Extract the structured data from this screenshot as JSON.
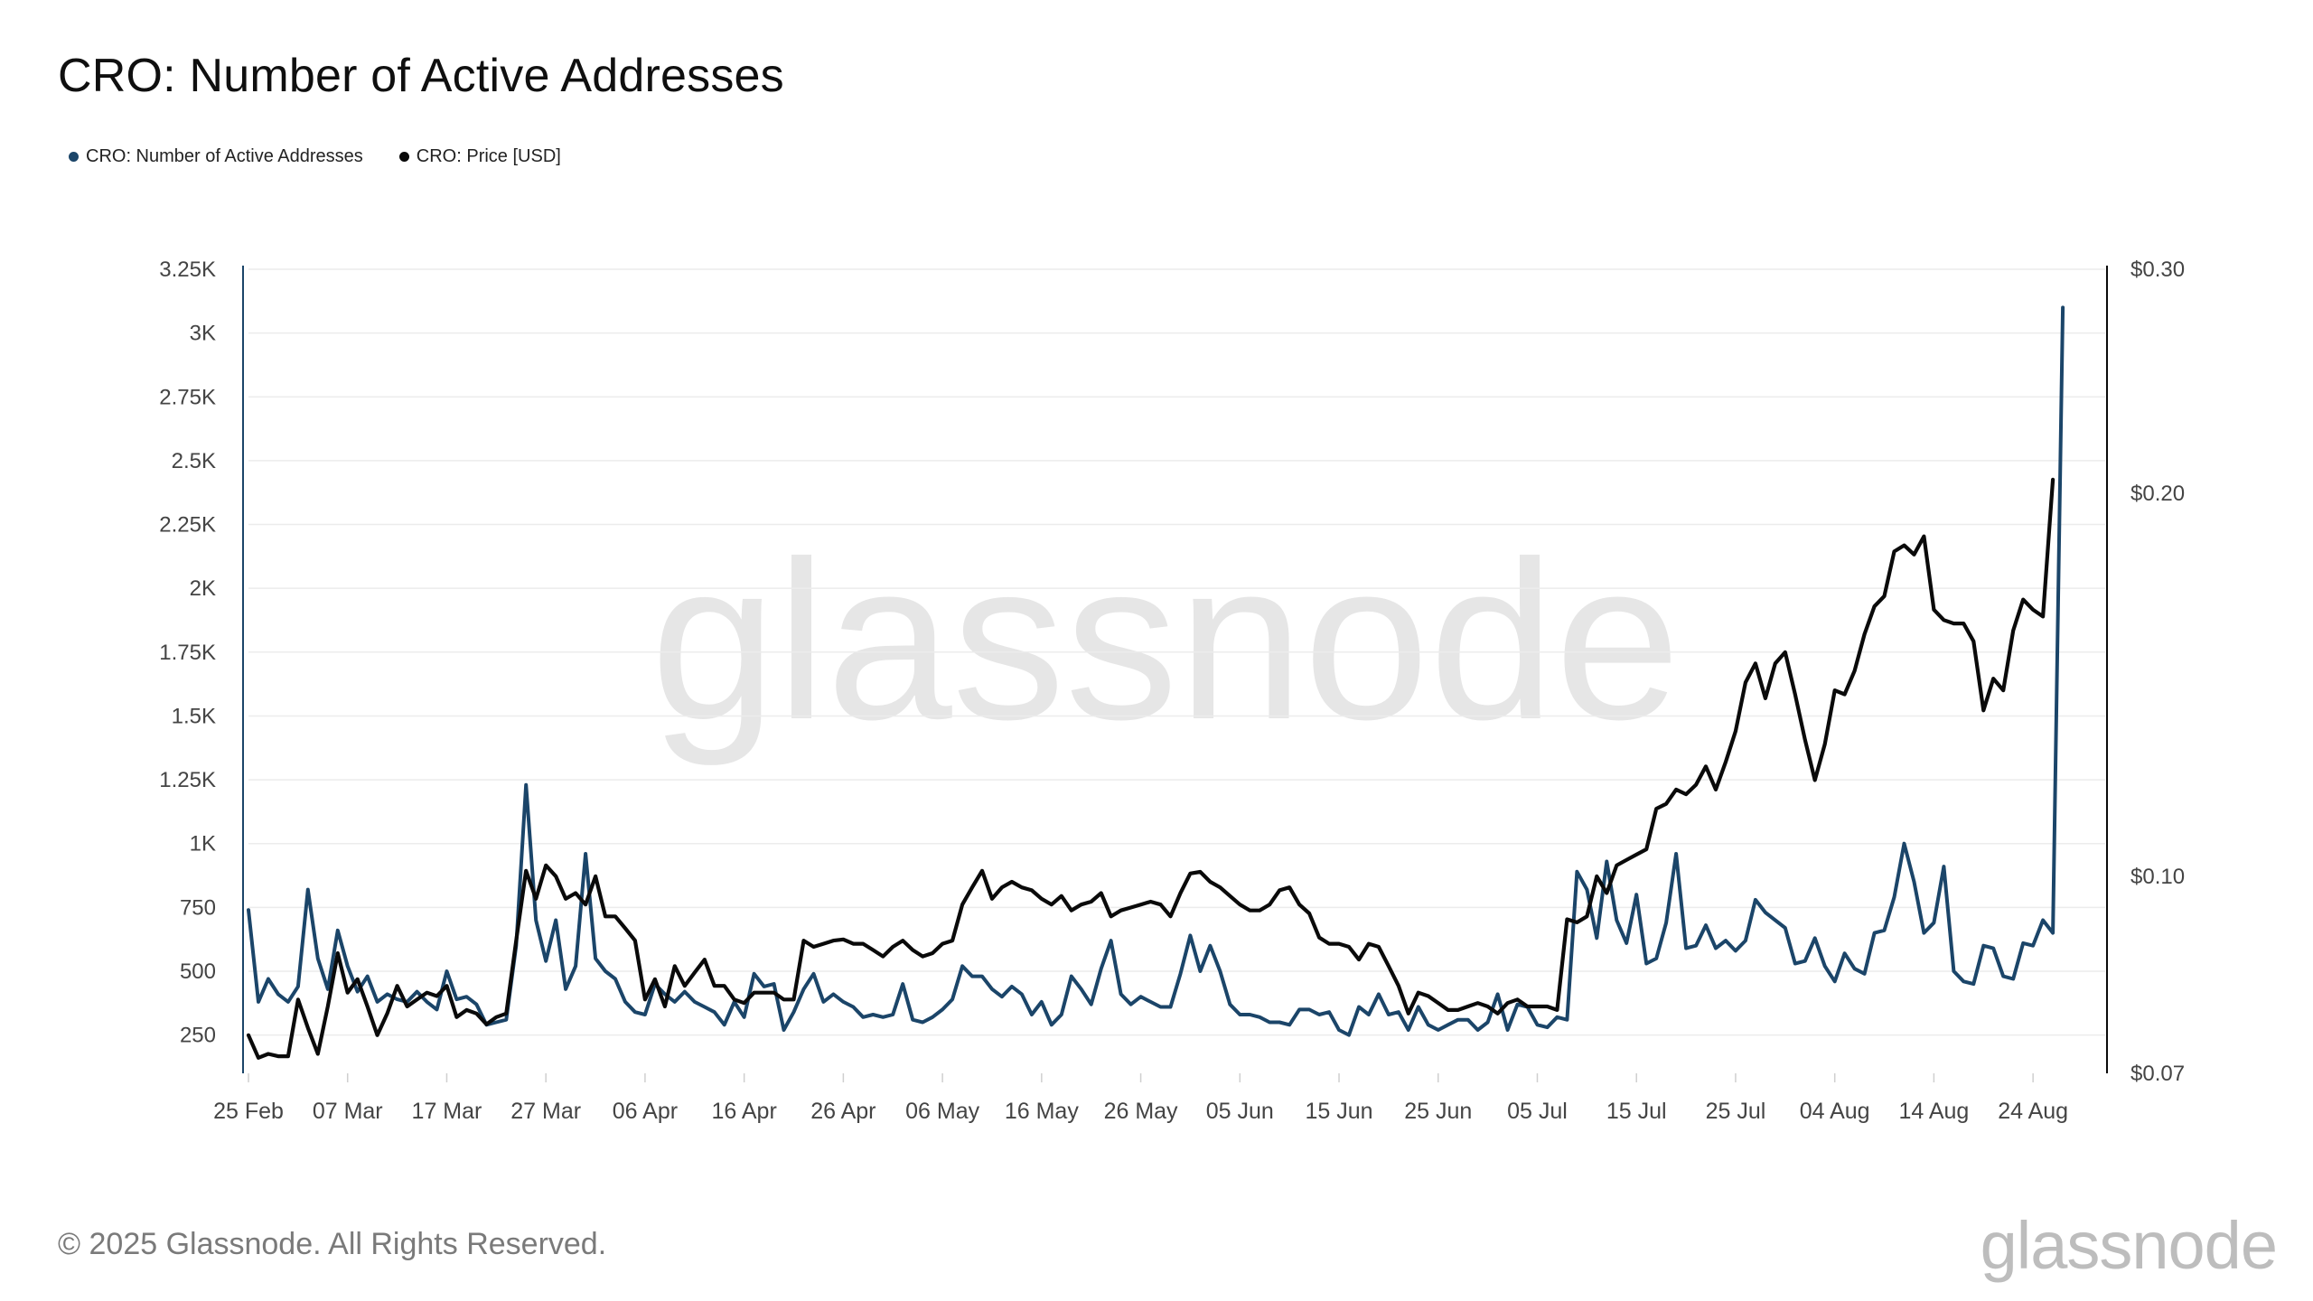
{
  "page": {
    "title": "CRO: Number of Active Addresses",
    "copyright": "© 2025 Glassnode. All Rights Reserved.",
    "brand": "glassnode",
    "watermark": "glassnode"
  },
  "colors": {
    "active_addresses": "#1b4569",
    "price": "#0a0a0a",
    "grid": "#ececec",
    "axis_text": "#444444",
    "watermark": "#e6e6e6"
  },
  "chart_data": {
    "type": "line",
    "title": "CRO: Number of Active Addresses",
    "legend": [
      "CRO: Number of Active Addresses",
      "CRO: Price [USD]"
    ],
    "x_start_date": "2025-02-25",
    "x_day_range": [
      0,
      185
    ],
    "x_ticks": [
      {
        "day": 0,
        "label": "25 Feb"
      },
      {
        "day": 10,
        "label": "07 Mar"
      },
      {
        "day": 20,
        "label": "17 Mar"
      },
      {
        "day": 30,
        "label": "27 Mar"
      },
      {
        "day": 40,
        "label": "06 Apr"
      },
      {
        "day": 50,
        "label": "16 Apr"
      },
      {
        "day": 60,
        "label": "26 Apr"
      },
      {
        "day": 70,
        "label": "06 May"
      },
      {
        "day": 80,
        "label": "16 May"
      },
      {
        "day": 90,
        "label": "26 May"
      },
      {
        "day": 100,
        "label": "05 Jun"
      },
      {
        "day": 110,
        "label": "15 Jun"
      },
      {
        "day": 120,
        "label": "25 Jun"
      },
      {
        "day": 130,
        "label": "05 Jul"
      },
      {
        "day": 140,
        "label": "15 Jul"
      },
      {
        "day": 150,
        "label": "25 Jul"
      },
      {
        "day": 160,
        "label": "04 Aug"
      },
      {
        "day": 170,
        "label": "14 Aug"
      },
      {
        "day": 180,
        "label": "24 Aug"
      }
    ],
    "y_left": {
      "range": [
        100,
        3250
      ],
      "ticks": [
        {
          "value": 250,
          "label": "250"
        },
        {
          "value": 500,
          "label": "500"
        },
        {
          "value": 750,
          "label": "750"
        },
        {
          "value": 1000,
          "label": "1K"
        },
        {
          "value": 1250,
          "label": "1.25K"
        },
        {
          "value": 1500,
          "label": "1.5K"
        },
        {
          "value": 1750,
          "label": "1.75K"
        },
        {
          "value": 2000,
          "label": "2K"
        },
        {
          "value": 2250,
          "label": "2.25K"
        },
        {
          "value": 2500,
          "label": "2.5K"
        },
        {
          "value": 2750,
          "label": "2.75K"
        },
        {
          "value": 3000,
          "label": "3K"
        },
        {
          "value": 3250,
          "label": "3.25K"
        }
      ]
    },
    "y_right": {
      "scale": "log",
      "range": [
        0.07,
        0.3
      ],
      "ticks": [
        {
          "value": 0.07,
          "label": "$0.07"
        },
        {
          "value": 0.1,
          "label": "$0.10"
        },
        {
          "value": 0.2,
          "label": "$0.20"
        },
        {
          "value": 0.3,
          "label": "$0.30"
        }
      ]
    },
    "series": [
      {
        "name": "CRO: Number of Active Addresses",
        "axis": "left",
        "color": "#1b4569",
        "start_day": 0,
        "values": [
          740,
          380,
          470,
          410,
          380,
          440,
          820,
          550,
          430,
          660,
          520,
          420,
          480,
          380,
          410,
          390,
          380,
          420,
          380,
          350,
          500,
          390,
          400,
          370,
          290,
          300,
          310,
          600,
          1230,
          700,
          540,
          700,
          430,
          520,
          960,
          550,
          500,
          470,
          380,
          340,
          330,
          450,
          410,
          380,
          420,
          380,
          360,
          340,
          290,
          380,
          320,
          490,
          440,
          450,
          270,
          340,
          430,
          490,
          380,
          410,
          380,
          360,
          320,
          330,
          320,
          330,
          450,
          310,
          300,
          320,
          350,
          390,
          520,
          480,
          480,
          430,
          400,
          440,
          410,
          330,
          380,
          290,
          330,
          480,
          430,
          370,
          510,
          620,
          410,
          370,
          400,
          380,
          360,
          360,
          490,
          640,
          500,
          600,
          500,
          370,
          330,
          330,
          320,
          300,
          300,
          290,
          350,
          350,
          330,
          340,
          270,
          250,
          360,
          330,
          410,
          330,
          340,
          270,
          360,
          290,
          270,
          290,
          310,
          310,
          270,
          300,
          410,
          270,
          370,
          360,
          290,
          280,
          320,
          310,
          890,
          820,
          630,
          930,
          700,
          610,
          800,
          530,
          550,
          690,
          960,
          590,
          600,
          680,
          590,
          620,
          580,
          620,
          780,
          730,
          700,
          670,
          530,
          540,
          630,
          520,
          460,
          570,
          510,
          490,
          650,
          660,
          790,
          1000,
          850,
          650,
          690,
          910,
          500,
          460,
          450,
          600,
          590,
          480,
          470,
          610,
          600,
          700,
          650,
          3100
        ]
      },
      {
        "name": "CRO: Price [USD]",
        "axis": "right",
        "color": "#0a0a0a",
        "start_day": 0,
        "values": [
          0.075,
          0.072,
          0.0725,
          0.0722,
          0.0722,
          0.08,
          0.076,
          0.0725,
          0.079,
          0.087,
          0.081,
          0.083,
          0.079,
          0.075,
          0.078,
          0.082,
          0.079,
          0.08,
          0.081,
          0.0805,
          0.082,
          0.0775,
          0.0785,
          0.078,
          0.0765,
          0.0775,
          0.078,
          0.089,
          0.101,
          0.096,
          0.102,
          0.1,
          0.096,
          0.097,
          0.095,
          0.1,
          0.093,
          0.093,
          0.091,
          0.089,
          0.08,
          0.083,
          0.079,
          0.085,
          0.082,
          0.084,
          0.086,
          0.082,
          0.082,
          0.08,
          0.0795,
          0.081,
          0.081,
          0.081,
          0.08,
          0.08,
          0.089,
          0.088,
          0.0885,
          0.089,
          0.0892,
          0.0885,
          0.0885,
          0.0875,
          0.0865,
          0.088,
          0.089,
          0.0875,
          0.0865,
          0.087,
          0.0885,
          0.089,
          0.095,
          0.098,
          0.101,
          0.096,
          0.098,
          0.099,
          0.098,
          0.0975,
          0.096,
          0.095,
          0.0965,
          0.094,
          0.095,
          0.0955,
          0.097,
          0.093,
          0.094,
          0.0945,
          0.095,
          0.0955,
          0.095,
          0.093,
          0.097,
          0.1005,
          0.1008,
          0.099,
          0.098,
          0.0965,
          0.095,
          0.094,
          0.094,
          0.095,
          0.0975,
          0.098,
          0.095,
          0.0935,
          0.0895,
          0.0885,
          0.0885,
          0.088,
          0.086,
          0.0885,
          0.088,
          0.085,
          0.082,
          0.078,
          0.081,
          0.0805,
          0.0795,
          0.0785,
          0.0785,
          0.079,
          0.0795,
          0.079,
          0.078,
          0.0795,
          0.08,
          0.079,
          0.079,
          0.079,
          0.0785,
          0.0925,
          0.092,
          0.093,
          0.1,
          0.097,
          0.102,
          0.103,
          0.104,
          0.105,
          0.113,
          0.114,
          0.117,
          0.116,
          0.118,
          0.122,
          0.117,
          0.123,
          0.13,
          0.142,
          0.147,
          0.138,
          0.147,
          0.15,
          0.139,
          0.128,
          0.119,
          0.127,
          0.14,
          0.139,
          0.145,
          0.155,
          0.163,
          0.166,
          0.18,
          0.182,
          0.179,
          0.185,
          0.162,
          0.159,
          0.158,
          0.158,
          0.153,
          0.135,
          0.143,
          0.14,
          0.156,
          0.165,
          0.162,
          0.16,
          0.205
        ]
      }
    ]
  }
}
